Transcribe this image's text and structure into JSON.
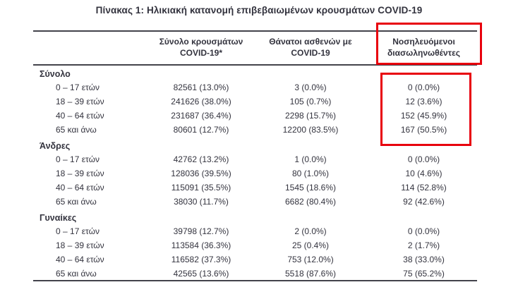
{
  "title": "Πίνακας 1: Ηλικιακή κατανομή επιβεβαιωμένων κρουσμάτων COVID-19",
  "colors": {
    "text": "#33333e",
    "rule": "#43434b",
    "highlight": "#e8000d"
  },
  "table": {
    "headers": [
      {
        "line1": "Σύνολο κρουσμάτων",
        "line2": "COVID-19*"
      },
      {
        "line1": "Θάνατοι ασθενών με",
        "line2": "COVID-19"
      },
      {
        "line1": "Νοσηλευόμενοι",
        "line2": "διασωληνωθέντες",
        "highlighted": true
      }
    ],
    "sections": [
      {
        "label": "Σύνολο",
        "intubated_column_highlighted": true,
        "rows": [
          {
            "age": "0 – 17 ετών",
            "cases": "82561 (13.0%)",
            "deaths": "3 (0.0%)",
            "intubated": "0 (0.0%)"
          },
          {
            "age": "18 – 39 ετών",
            "cases": "241626 (38.0%)",
            "deaths": "105 (0.7%)",
            "intubated": "12 (3.6%)"
          },
          {
            "age": "40 – 64 ετών",
            "cases": "231687 (36.4%)",
            "deaths": "2298 (15.7%)",
            "intubated": "152 (45.9%)"
          },
          {
            "age": "65 και άνω",
            "cases": "80601 (12.7%)",
            "deaths": "12200 (83.5%)",
            "intubated": "167 (50.5%)"
          }
        ]
      },
      {
        "label": "Άνδρες",
        "rows": [
          {
            "age": "0 – 17 ετών",
            "cases": "42762 (13.2%)",
            "deaths": "1 (0.0%)",
            "intubated": "0 (0.0%)"
          },
          {
            "age": "18 – 39 ετών",
            "cases": "128036 (39.5%)",
            "deaths": "80 (1.0%)",
            "intubated": "10 (4.6%)"
          },
          {
            "age": "40 – 64 ετών",
            "cases": "115091 (35.5%)",
            "deaths": "1545 (18.6%)",
            "intubated": "114 (52.8%)"
          },
          {
            "age": "65 και άνω",
            "cases": "38030 (11.7%)",
            "deaths": "6682 (80.4%)",
            "intubated": "92 (42.6%)"
          }
        ]
      },
      {
        "label": "Γυναίκες",
        "rows": [
          {
            "age": "0 – 17 ετών",
            "cases": "39798 (12.7%)",
            "deaths": "2 (0.0%)",
            "intubated": "0 (0.0%)"
          },
          {
            "age": "18 – 39 ετών",
            "cases": "113584 (36.3%)",
            "deaths": "25 (0.4%)",
            "intubated": "2 (1.7%)"
          },
          {
            "age": "40 – 64 ετών",
            "cases": "116582 (37.3%)",
            "deaths": "753 (12.0%)",
            "intubated": "38 (33.0%)"
          },
          {
            "age": "65 και άνω",
            "cases": "42565 (13.6%)",
            "deaths": "5518 (87.6%)",
            "intubated": "75 (65.2%)"
          }
        ]
      }
    ]
  }
}
